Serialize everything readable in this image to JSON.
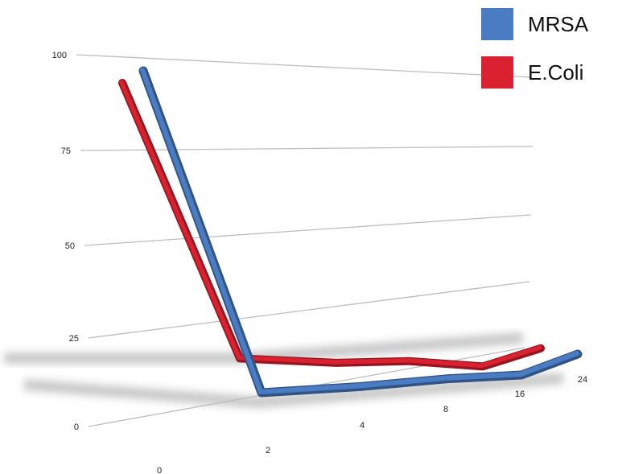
{
  "chart_data": {
    "type": "line",
    "categories": [
      "0",
      "2",
      "4",
      "8",
      "16",
      "24"
    ],
    "y_ticks": [
      "0",
      "25",
      "50",
      "75",
      "100"
    ],
    "ylim": [
      0,
      100
    ],
    "series": [
      {
        "name": "MRSA",
        "color": "#4a7cc4",
        "values": [
          100,
          0.5,
          1.2,
          1.8,
          1.0,
          4.0
        ]
      },
      {
        "name": "E.Coli",
        "color": "#d9212f",
        "values": [
          100,
          3.0,
          2.0,
          1.5,
          1.3,
          2.6
        ]
      }
    ],
    "grid": true,
    "legend_position": "top-right"
  }
}
